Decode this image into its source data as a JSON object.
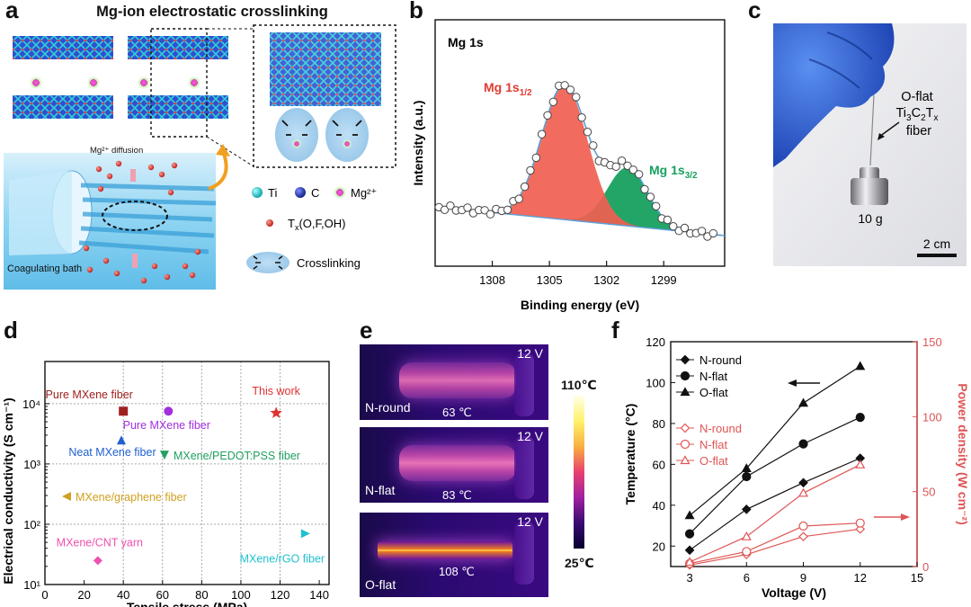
{
  "panel_labels": {
    "a": "a",
    "b": "b",
    "c": "c",
    "d": "d",
    "e": "e",
    "f": "f"
  },
  "panel_a": {
    "title": "Mg-ion electrostatic crosslinking",
    "diffusion_label": "Mg²⁺ diffusion",
    "bath_label": "Coagulating bath",
    "legend": {
      "ti": "Ti",
      "c": "C",
      "mg": "Mg²⁺",
      "tx_pre": "T",
      "tx_sub": "x",
      "tx_post": "(O,F,OH)",
      "crosslinking": "Crosslinking"
    },
    "colors": {
      "ti": "#2ec4c4",
      "c": "#2a3fb0",
      "mg": "#e040c0",
      "tx": "#d23a3a",
      "bath": "#7fd0f0"
    }
  },
  "panel_b": {
    "label": "Mg 1s",
    "peak1_main": "Mg 1s",
    "peak1_sub": "1/2",
    "peak2_main": "Mg 1s",
    "peak2_sub": "3/2",
    "xlabel": "Binding energy (eV)",
    "ylabel": "Intensity (a.u.)",
    "xticks": [
      "1308",
      "1305",
      "1302",
      "1299"
    ],
    "colors": {
      "peak1": "#f06050",
      "peak2": "#18a060",
      "envelope": "#5aa0d8"
    }
  },
  "panel_c": {
    "label_line1": "O-flat",
    "label_line2_parts": [
      "Ti",
      "3",
      "C",
      "2",
      "T",
      "x"
    ],
    "label_line3": "fiber",
    "weight": "10 g",
    "scale": "2 cm"
  },
  "chart_data": [
    {
      "type": "scatter",
      "panel": "d",
      "xlabel": "Tensile stress (MPa)",
      "ylabel": "Electrical conductivity (S cm⁻¹)",
      "xlim": [
        0,
        145
      ],
      "ylim": [
        10,
        50000
      ],
      "yscale": "log",
      "xticks": [
        "0",
        "20",
        "40",
        "60",
        "80",
        "100",
        "120",
        "140"
      ],
      "yticks": [
        "10¹",
        "10²",
        "10³",
        "10⁴"
      ],
      "grid": true,
      "points": [
        {
          "label": "Pure MXene fiber",
          "x": 40,
          "y": 7500,
          "marker": "square",
          "color": "#a02020"
        },
        {
          "label": "Pure MXene fiber",
          "x": 63,
          "y": 7500,
          "marker": "circle",
          "color": "#a030e0"
        },
        {
          "label": "This work",
          "x": 118,
          "y": 7000,
          "marker": "star",
          "color": "#e03030"
        },
        {
          "label": "Neat MXene fiber",
          "x": 39,
          "y": 2500,
          "marker": "triangle-up",
          "color": "#2060d0"
        },
        {
          "label": "MXene/PEDOT:PSS fiber",
          "x": 61,
          "y": 1400,
          "marker": "triangle-down",
          "color": "#20a060"
        },
        {
          "label": "MXene/graphene fiber",
          "x": 11,
          "y": 290,
          "marker": "triangle-left",
          "color": "#d0a020"
        },
        {
          "label": "MXene/rGO fiber",
          "x": 133,
          "y": 70,
          "marker": "triangle-right",
          "color": "#20c0d0"
        },
        {
          "label": "MXene/CNT yarn",
          "x": 27,
          "y": 25,
          "marker": "diamond",
          "color": "#f050b0"
        }
      ]
    },
    {
      "type": "line",
      "panel": "f",
      "xlabel": "Voltage (V)",
      "ylabel": "Temperature (°C)",
      "y2label": "Power density (W cm⁻²)",
      "x": [
        3,
        6,
        9,
        12
      ],
      "xlim": [
        2,
        15
      ],
      "ylim": [
        10,
        120
      ],
      "y2lim": [
        0,
        150
      ],
      "xticks": [
        "3",
        "6",
        "9",
        "12",
        "15"
      ],
      "yticks": [
        "20",
        "40",
        "60",
        "80",
        "100",
        "120"
      ],
      "y2ticks": [
        "0",
        "50",
        "100",
        "150"
      ],
      "series": [
        {
          "name": "N-round",
          "axis": "left",
          "marker": "diamond",
          "filled": true,
          "color": "#111111",
          "values": [
            18,
            38,
            51,
            63
          ]
        },
        {
          "name": "N-flat",
          "axis": "left",
          "marker": "circle",
          "filled": true,
          "color": "#111111",
          "values": [
            26,
            54,
            70,
            83
          ]
        },
        {
          "name": "O-flat",
          "axis": "left",
          "marker": "triangle",
          "filled": true,
          "color": "#111111",
          "values": [
            35,
            58,
            90,
            108
          ]
        },
        {
          "name": "N-round",
          "axis": "right",
          "marker": "diamond",
          "filled": false,
          "color": "#e05555",
          "values": [
            1,
            8,
            20,
            25
          ]
        },
        {
          "name": "N-flat",
          "axis": "right",
          "marker": "circle",
          "filled": false,
          "color": "#e05555",
          "values": [
            2,
            10,
            27,
            29
          ]
        },
        {
          "name": "O-flat",
          "axis": "right",
          "marker": "triangle",
          "filled": false,
          "color": "#e05555",
          "values": [
            3,
            20,
            49,
            68
          ]
        }
      ]
    }
  ],
  "panel_e": {
    "images": [
      {
        "name": "N-round",
        "voltage": "12 V",
        "temp": "63 ℃"
      },
      {
        "name": "N-flat",
        "voltage": "12 V",
        "temp": "83 ℃"
      },
      {
        "name": "O-flat",
        "voltage": "12 V",
        "temp": "108 ℃"
      }
    ],
    "scale_max": "110℃",
    "scale_min": "25℃"
  }
}
